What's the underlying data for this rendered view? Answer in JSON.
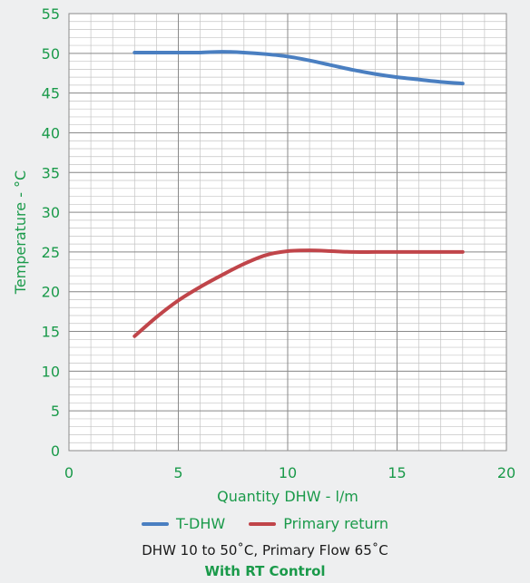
{
  "chart_data": {
    "type": "line",
    "xlabel": "Quantity DHW - l/m",
    "ylabel": "Temperature - °C",
    "xlim": [
      0,
      20
    ],
    "ylim": [
      0,
      55
    ],
    "xticks": [
      0,
      5,
      10,
      15,
      20
    ],
    "yticks": [
      0,
      5,
      10,
      15,
      20,
      25,
      30,
      35,
      40,
      45,
      50,
      55
    ],
    "grid": true,
    "legend_position": "bottom",
    "series": [
      {
        "name": "T-DHW",
        "color": "#4a7fc1",
        "x": [
          3,
          4,
          5,
          6,
          7,
          8,
          9,
          10,
          11,
          12,
          13,
          14,
          15,
          16,
          17,
          18
        ],
        "y": [
          50.1,
          50.1,
          50.1,
          50.1,
          50.2,
          50.1,
          49.9,
          49.6,
          49.1,
          48.5,
          47.9,
          47.4,
          47.0,
          46.7,
          46.4,
          46.2
        ]
      },
      {
        "name": "Primary return",
        "color": "#c0454a",
        "x": [
          3,
          4,
          5,
          6,
          7,
          8,
          9,
          10,
          11,
          12,
          13,
          14,
          15,
          16,
          17,
          18
        ],
        "y": [
          14.4,
          16.8,
          18.9,
          20.6,
          22.1,
          23.5,
          24.6,
          25.1,
          25.2,
          25.1,
          25.0,
          25.0,
          25.0,
          25.0,
          25.0,
          25.0
        ]
      }
    ],
    "caption": "DHW 10 to 50˚C, Primary Flow 65˚C",
    "subcaption": "With RT Control"
  }
}
